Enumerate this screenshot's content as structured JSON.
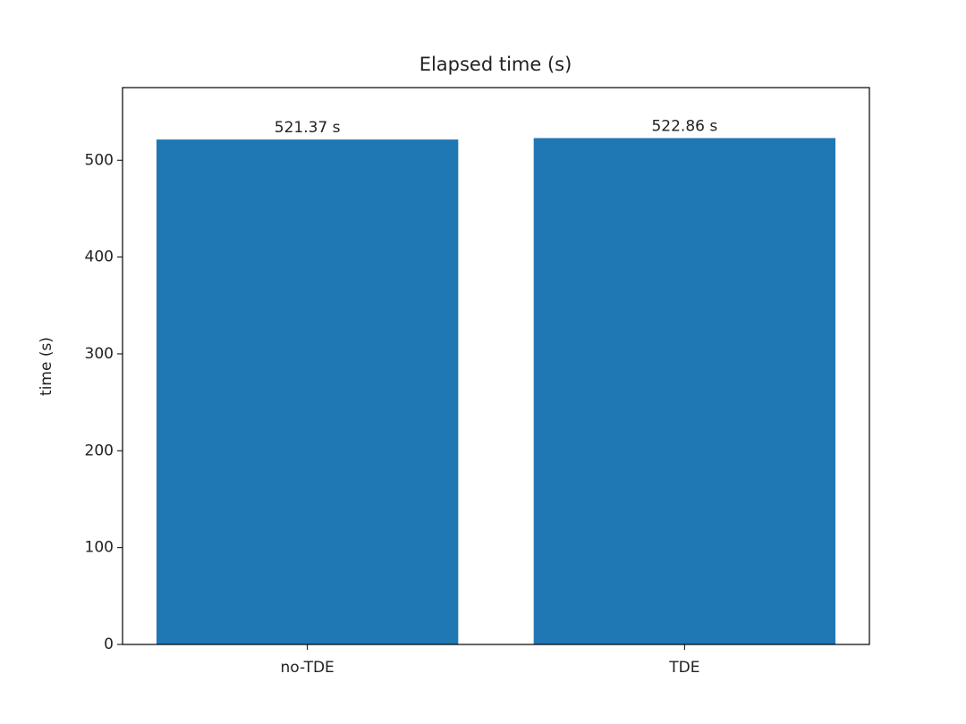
{
  "chart_data": {
    "type": "bar",
    "title": "Elapsed time (s)",
    "ylabel": "time (s)",
    "categories": [
      "no-TDE",
      "TDE"
    ],
    "values": [
      521.37,
      522.86
    ],
    "value_labels": [
      "521.37 s",
      "522.86 s"
    ],
    "color": "#1f77b4",
    "ylim": [
      0,
      575
    ],
    "yticks": [
      0,
      100,
      200,
      300,
      400,
      500
    ],
    "grid": false
  }
}
